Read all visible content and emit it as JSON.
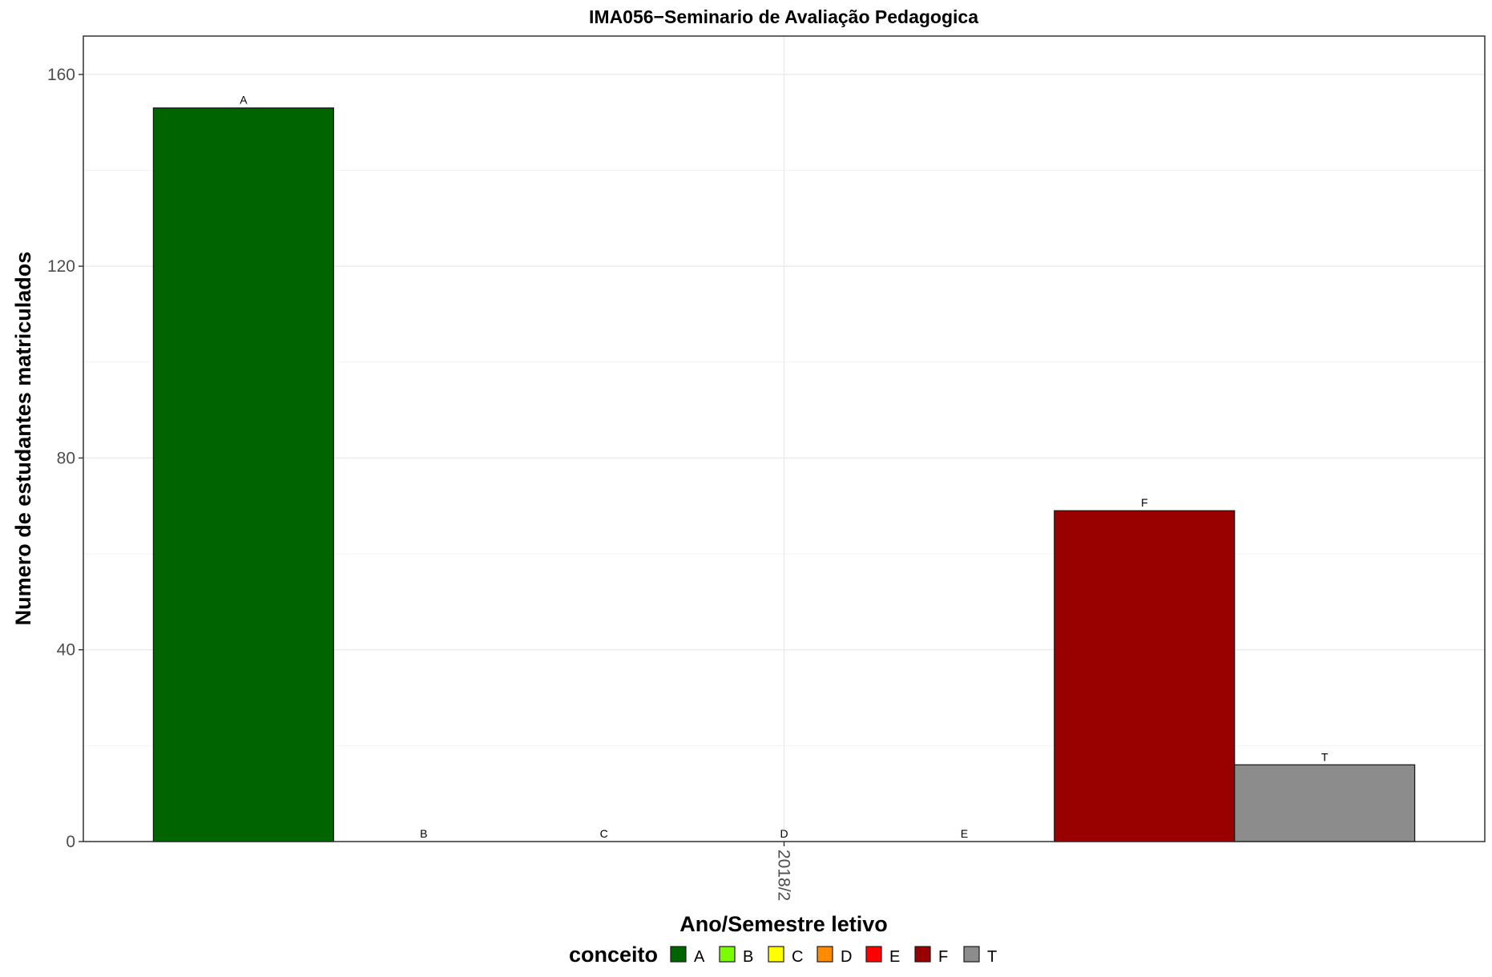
{
  "chart_data": {
    "type": "bar",
    "title": "IMA056−Seminario de Avaliação Pedagogica",
    "xlabel": "Ano/Semestre letivo",
    "ylabel": "Numero de estudantes matriculados",
    "categories": [
      "2018/2"
    ],
    "ylim": [
      0,
      168
    ],
    "yticks": [
      0,
      40,
      80,
      120,
      160
    ],
    "grid": true,
    "legend": {
      "title": "conceito",
      "position": "bottom",
      "items": [
        "A",
        "B",
        "C",
        "D",
        "E",
        "F",
        "T"
      ]
    },
    "series": [
      {
        "name": "A",
        "color": "#006400",
        "values": [
          153
        ]
      },
      {
        "name": "B",
        "color": "#7CFC00",
        "values": [
          0
        ]
      },
      {
        "name": "C",
        "color": "#FFFF00",
        "values": [
          0
        ]
      },
      {
        "name": "D",
        "color": "#FF8C00",
        "values": [
          0
        ]
      },
      {
        "name": "E",
        "color": "#FF0000",
        "values": [
          0
        ]
      },
      {
        "name": "F",
        "color": "#990000",
        "values": [
          69
        ]
      },
      {
        "name": "T",
        "color": "#8C8C8C",
        "values": [
          16
        ]
      }
    ]
  }
}
